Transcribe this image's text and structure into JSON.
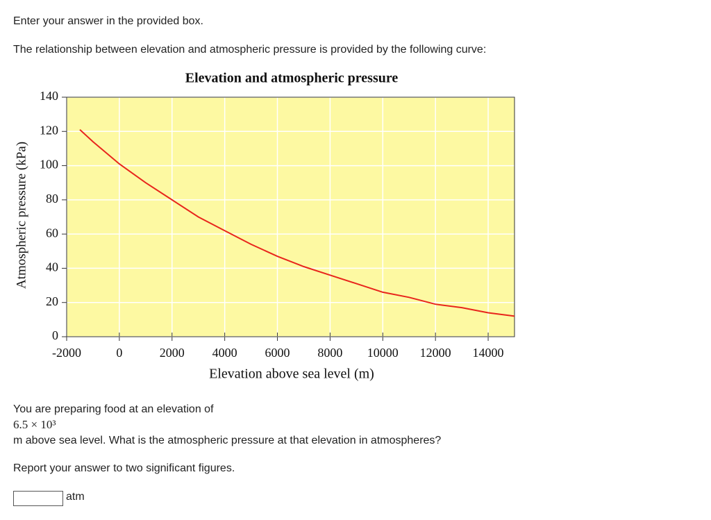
{
  "instruction": "Enter your answer in the provided box.",
  "intro": "The relationship between elevation and atmospheric pressure is provided by the following curve:",
  "chart_data": {
    "type": "line",
    "title": "Elevation and atmospheric pressure",
    "x_label": "Elevation above sea level (m)",
    "y_label": "Atmospheric pressure (kPa)",
    "x": [
      -1500,
      -1000,
      0,
      1000,
      2000,
      3000,
      4000,
      5000,
      6000,
      7000,
      8000,
      9000,
      10000,
      11000,
      12000,
      13000,
      14000,
      15000
    ],
    "values": [
      121,
      114,
      101,
      90,
      80,
      70,
      62,
      54,
      47,
      41,
      36,
      31,
      26,
      23,
      19,
      17,
      14,
      12
    ],
    "color": "#e8251c",
    "background": "#fdf9a2",
    "xlim": [
      -2000,
      15000
    ],
    "xticks": [
      -2000,
      0,
      2000,
      4000,
      6000,
      8000,
      10000,
      12000,
      14000
    ],
    "ylim": [
      0,
      140
    ],
    "yticks": [
      0,
      20,
      40,
      60,
      80,
      100,
      120,
      140
    ],
    "grid": true
  },
  "question": {
    "line1": "You are preparing food at an elevation of",
    "quantity": "6.5 × 10³",
    "line2": "m above sea level. What is the atmospheric pressure at that elevation in atmospheres?",
    "note": "Report your answer to two significant figures."
  },
  "answer": {
    "unit": "atm"
  }
}
